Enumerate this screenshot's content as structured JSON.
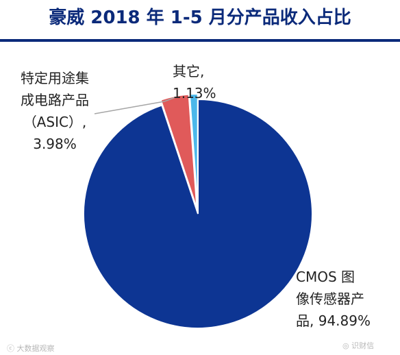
{
  "chart_data": {
    "type": "pie",
    "title": "豪威 2018 年 1-5 月分产品收入占比",
    "slices": [
      {
        "label": "CMOS 图像传感器产品",
        "value": 94.89,
        "value_text": "94.89%",
        "color": "#0d3593"
      },
      {
        "label": "特定用途集成电路产品（ASIC）",
        "value": 3.98,
        "value_text": "3.98%",
        "color": "#e05a5a"
      },
      {
        "label": "其它",
        "value": 1.13,
        "value_text": "1.13%",
        "color": "#4cb8ea"
      }
    ],
    "labels": {
      "cmos": "CMOS 图\n像传感器产\n品, 94.89%",
      "asic": "特定用途集\n成电路产品\n（ASIC）,\n3.98%",
      "other": "其它,\n1.13%"
    }
  },
  "watermarks": {
    "left": "ⓒ 大数据观察",
    "right": "◎ 识财信"
  }
}
